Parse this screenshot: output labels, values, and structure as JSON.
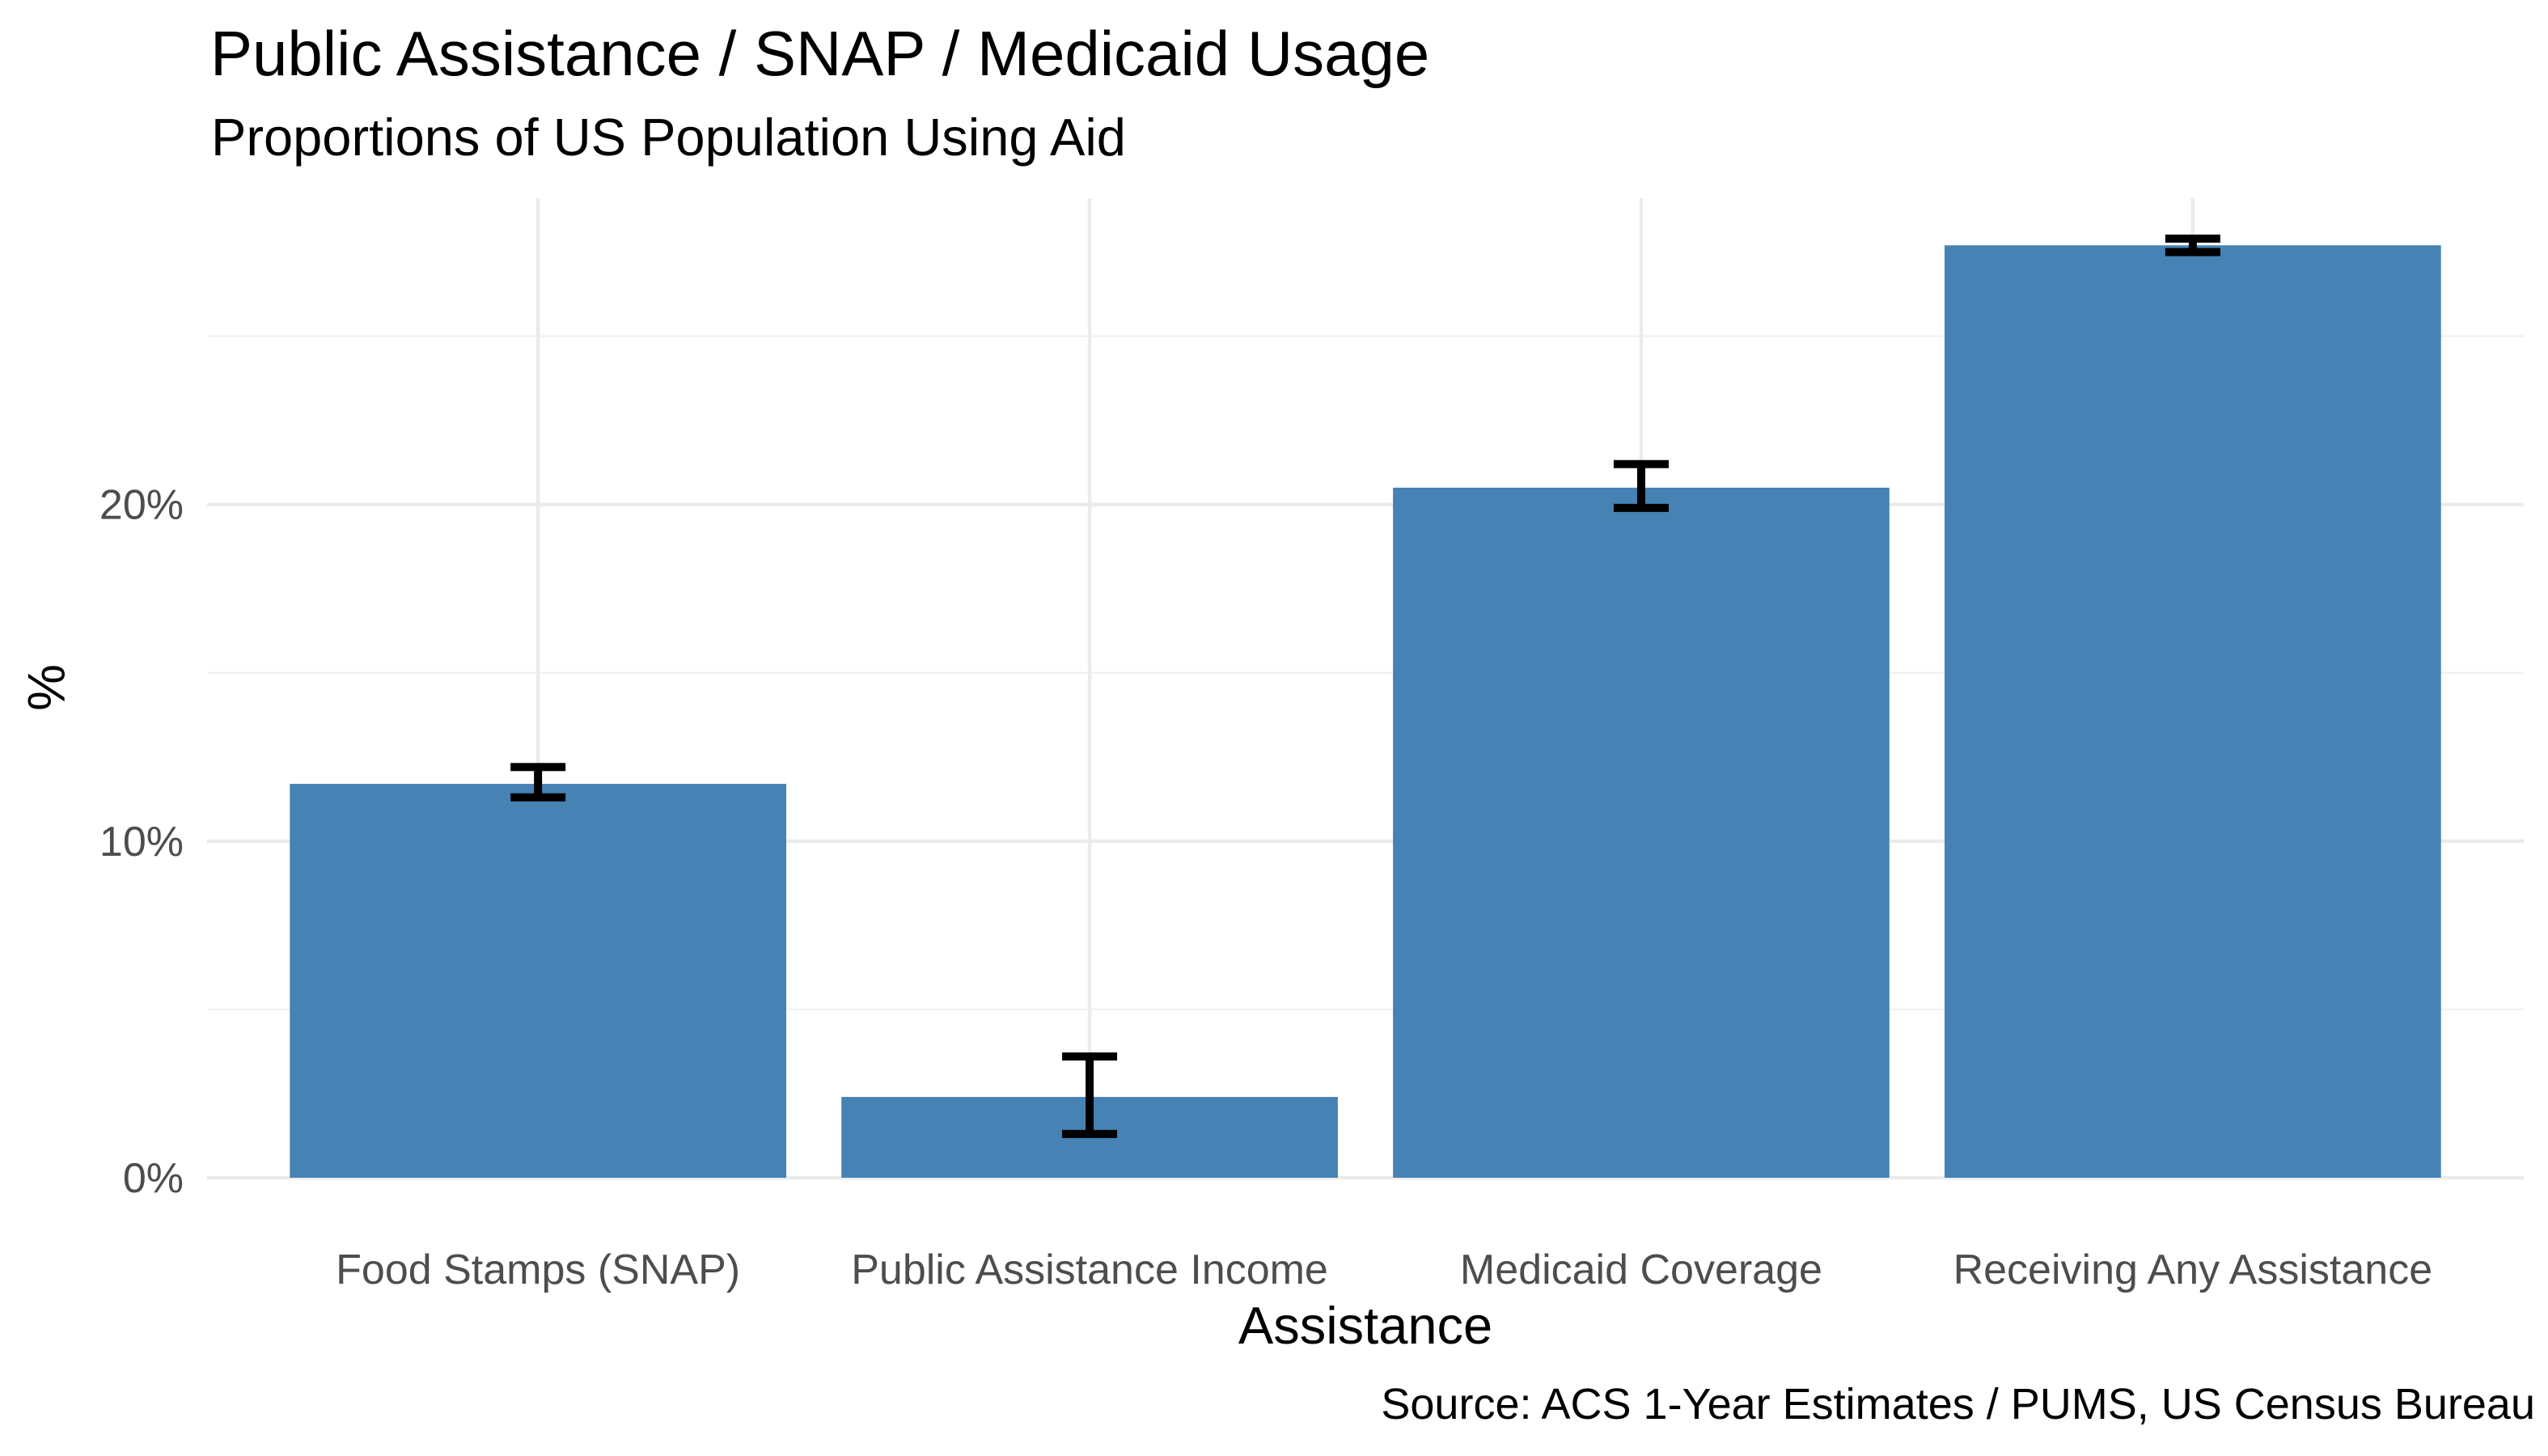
{
  "chart_data": {
    "type": "bar",
    "title": "Public Assistance / SNAP / Medicaid Usage",
    "subtitle": "Proportions of US Population Using Aid",
    "caption": "Source: ACS 1-Year Estimates / PUMS, US Census Bureau",
    "xlabel": "Assistance",
    "ylabel": "%",
    "categories": [
      "Food Stamps (SNAP)",
      "Public Assistance Income",
      "Medicaid Coverage",
      "Receiving Any Assistance"
    ],
    "values": [
      11.7,
      2.4,
      20.5,
      27.7
    ],
    "error_bars": {
      "ymin": [
        11.3,
        1.3,
        19.9,
        27.5
      ],
      "ymax": [
        12.2,
        3.6,
        21.2,
        27.9
      ]
    },
    "y_ticks": {
      "values": [
        0,
        10,
        20
      ],
      "labels": [
        "0%",
        "10%",
        "20%"
      ]
    },
    "y_minor_ticks": [
      5,
      15,
      25
    ],
    "ylim": [
      0,
      29.1
    ],
    "bar_width_fraction": 0.9,
    "grid": true,
    "legend": "none",
    "colors": {
      "bar": "#4682B4",
      "error": "#000000",
      "grid_major": "#EBEBEB",
      "grid_minor": "#F2F2F2",
      "axis_text": "#4D4D4D",
      "title_text": "#000000",
      "background": "#FFFFFF"
    }
  }
}
